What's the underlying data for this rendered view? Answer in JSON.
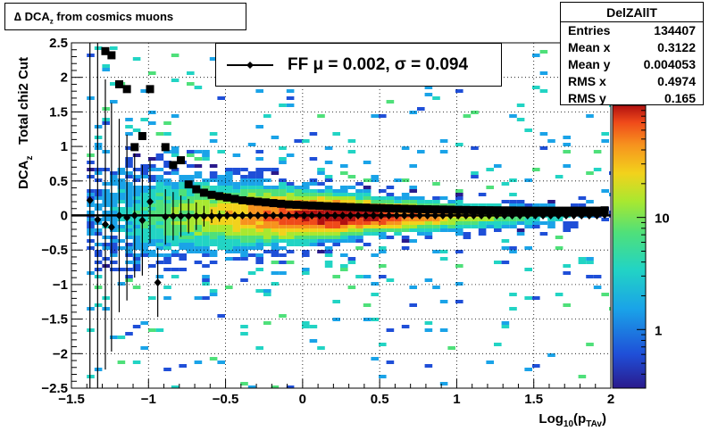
{
  "title": {
    "main": "∆ DCA",
    "sub": "z",
    "rest": " from cosmics muons"
  },
  "stats": {
    "name": "DelZAllT",
    "rows": [
      {
        "key": "Entries",
        "value": "134407"
      },
      {
        "key": "Mean x",
        "value": "0.3122"
      },
      {
        "key": "Mean y",
        "value": "0.004053"
      },
      {
        "key": "RMS x",
        "value": "0.4974"
      },
      {
        "key": "RMS y",
        "value": "0.165"
      }
    ]
  },
  "legend": {
    "label": "FF μ =  0.002, σ =   0.094"
  },
  "chart_data": {
    "type": "heatmap",
    "xlabel": {
      "main": "Log",
      "sub1": "10",
      "mid": "(p",
      "sub2": "TAv",
      "end": ")"
    },
    "ylabel": {
      "main": "DCA",
      "sub": "z",
      "rest": "   Total chi2 Cut"
    },
    "xlim": [
      -1.5,
      2
    ],
    "ylim": [
      -2.5,
      2.5
    ],
    "x_ticks": [
      -1.5,
      -1,
      -0.5,
      0,
      0.5,
      1,
      1.5,
      2
    ],
    "x_tick_labels": [
      "−1.5",
      "−1",
      "−0.5",
      "0",
      "0.5",
      "1",
      "1.5",
      "2"
    ],
    "y_ticks": [
      -2.5,
      -2,
      -1.5,
      -1,
      -0.5,
      0,
      0.5,
      1,
      1.5,
      2,
      2.5
    ],
    "y_tick_labels": [
      "−2.5",
      "−2",
      "−1.5",
      "−1",
      "−0.5",
      "0",
      "0.5",
      "1",
      "1.5",
      "2",
      "2.5"
    ],
    "grid": true,
    "z_scale": "log",
    "z_ticks": [
      1,
      10
    ],
    "z_tick_labels": [
      "1",
      "10"
    ],
    "z_range": [
      0.3,
      100
    ],
    "colormap": [
      "#2a1a8c",
      "#1f4fd8",
      "#1aa3e8",
      "#22d4c4",
      "#4fe07a",
      "#a8e830",
      "#f2d21c",
      "#f7931e",
      "#ef4a1a",
      "#b11010"
    ],
    "heatmap": {
      "center_y": 0,
      "width_at_x": [
        [
          -1.3,
          1.1
        ],
        [
          -0.5,
          0.7
        ],
        [
          0.5,
          0.35
        ],
        [
          1.5,
          0.25
        ],
        [
          2,
          0.2
        ]
      ],
      "peak_x": 0.25
    },
    "series": [
      {
        "marker": "square",
        "points": [
          {
            "x": -1.28,
            "y": 2.38
          },
          {
            "x": -1.24,
            "y": 2.32
          },
          {
            "x": -1.19,
            "y": 1.9
          },
          {
            "x": -1.14,
            "y": 1.83
          },
          {
            "x": -1.09,
            "y": 0.99
          },
          {
            "x": -1.04,
            "y": 1.15
          },
          {
            "x": -0.99,
            "y": 1.83
          },
          {
            "x": -0.89,
            "y": 0.99
          },
          {
            "x": -0.84,
            "y": 0.73
          },
          {
            "x": -0.79,
            "y": 0.8
          },
          {
            "x": -0.74,
            "y": 0.45
          },
          {
            "x": -0.69,
            "y": 0.38
          },
          {
            "x": -0.64,
            "y": 0.33
          },
          {
            "x": -0.59,
            "y": 0.3
          },
          {
            "x": -0.54,
            "y": 0.28
          },
          {
            "x": -0.49,
            "y": 0.26
          },
          {
            "x": -0.44,
            "y": 0.24
          },
          {
            "x": -0.39,
            "y": 0.22
          },
          {
            "x": -0.34,
            "y": 0.21
          },
          {
            "x": -0.29,
            "y": 0.2
          },
          {
            "x": -0.24,
            "y": 0.19
          },
          {
            "x": -0.19,
            "y": 0.18
          },
          {
            "x": -0.14,
            "y": 0.17
          },
          {
            "x": -0.09,
            "y": 0.16
          },
          {
            "x": -0.04,
            "y": 0.155
          },
          {
            "x": 0.01,
            "y": 0.15
          },
          {
            "x": 0.06,
            "y": 0.145
          },
          {
            "x": 0.11,
            "y": 0.14
          },
          {
            "x": 0.16,
            "y": 0.135
          },
          {
            "x": 0.21,
            "y": 0.13
          },
          {
            "x": 0.26,
            "y": 0.126
          },
          {
            "x": 0.31,
            "y": 0.122
          },
          {
            "x": 0.36,
            "y": 0.118
          },
          {
            "x": 0.41,
            "y": 0.114
          },
          {
            "x": 0.46,
            "y": 0.11
          },
          {
            "x": 0.51,
            "y": 0.107
          },
          {
            "x": 0.56,
            "y": 0.104
          },
          {
            "x": 0.61,
            "y": 0.101
          },
          {
            "x": 0.66,
            "y": 0.098
          },
          {
            "x": 0.71,
            "y": 0.095
          },
          {
            "x": 0.76,
            "y": 0.092
          },
          {
            "x": 0.81,
            "y": 0.09
          },
          {
            "x": 0.86,
            "y": 0.088
          },
          {
            "x": 0.91,
            "y": 0.086
          },
          {
            "x": 0.96,
            "y": 0.084
          },
          {
            "x": 1.01,
            "y": 0.082
          },
          {
            "x": 1.06,
            "y": 0.08
          },
          {
            "x": 1.11,
            "y": 0.078
          },
          {
            "x": 1.16,
            "y": 0.077
          },
          {
            "x": 1.21,
            "y": 0.076
          },
          {
            "x": 1.26,
            "y": 0.075
          },
          {
            "x": 1.31,
            "y": 0.074
          },
          {
            "x": 1.36,
            "y": 0.073
          },
          {
            "x": 1.41,
            "y": 0.072
          },
          {
            "x": 1.46,
            "y": 0.071
          },
          {
            "x": 1.51,
            "y": 0.07
          },
          {
            "x": 1.56,
            "y": 0.07
          },
          {
            "x": 1.61,
            "y": 0.07
          },
          {
            "x": 1.66,
            "y": 0.07
          },
          {
            "x": 1.71,
            "y": 0.07
          },
          {
            "x": 1.76,
            "y": 0.07
          },
          {
            "x": 1.81,
            "y": 0.07
          },
          {
            "x": 1.86,
            "y": 0.07
          },
          {
            "x": 1.91,
            "y": 0.07
          },
          {
            "x": 1.96,
            "y": 0.075
          }
        ]
      },
      {
        "marker": "diamond",
        "label_ref": "legend",
        "fit_line": {
          "y": 0.002
        },
        "points": [
          {
            "x": -1.38,
            "y": 0.22,
            "err": 2.8
          },
          {
            "x": -1.33,
            "y": -0.06,
            "err": 2.6
          },
          {
            "x": -1.28,
            "y": -0.13,
            "err": 2.1
          },
          {
            "x": -1.24,
            "y": -0.17,
            "err": 1.8
          },
          {
            "x": -1.19,
            "y": 0.0,
            "err": 1.4
          },
          {
            "x": -1.14,
            "y": -0.03,
            "err": 1.2
          },
          {
            "x": -1.09,
            "y": -0.0,
            "err": 0.9
          },
          {
            "x": -1.04,
            "y": -0.07,
            "err": 0.8
          },
          {
            "x": -0.99,
            "y": 0.2,
            "err": 0.6
          },
          {
            "x": -0.94,
            "y": -0.97,
            "err": 0.5
          },
          {
            "x": -0.89,
            "y": -0.02,
            "err": 0.4
          },
          {
            "x": -0.84,
            "y": -0.01,
            "err": 0.35
          },
          {
            "x": -0.79,
            "y": -0.01,
            "err": 0.3
          },
          {
            "x": -0.74,
            "y": -0.01,
            "err": 0.25
          },
          {
            "x": -0.69,
            "y": -0.01,
            "err": 0.2
          },
          {
            "x": -0.64,
            "y": -0.01,
            "err": 0.15
          },
          {
            "x": -0.59,
            "y": -0.01,
            "err": 0.1
          },
          {
            "x": -0.54,
            "y": -0.01,
            "err": 0.08
          },
          {
            "x": -0.49,
            "y": 0.0,
            "err": 0.06
          },
          {
            "x": -0.44,
            "y": 0.0,
            "err": 0.05
          },
          {
            "x": -0.39,
            "y": 0.0,
            "err": 0.04
          },
          {
            "x": -0.34,
            "y": 0.0,
            "err": 0.03
          },
          {
            "x": -0.29,
            "y": 0.0,
            "err": 0.03
          },
          {
            "x": -0.24,
            "y": 0.0,
            "err": 0.02
          },
          {
            "x": -0.19,
            "y": 0.0,
            "err": 0.02
          },
          {
            "x": -0.14,
            "y": 0.0,
            "err": 0.02
          },
          {
            "x": -0.09,
            "y": 0.0,
            "err": 0.02
          },
          {
            "x": -0.04,
            "y": 0.0,
            "err": 0.02
          },
          {
            "x": 0.01,
            "y": 0.0,
            "err": 0.02
          },
          {
            "x": 0.06,
            "y": 0.0,
            "err": 0.02
          },
          {
            "x": 0.11,
            "y": 0.0,
            "err": 0.02
          },
          {
            "x": 0.16,
            "y": 0.0,
            "err": 0.02
          },
          {
            "x": 0.21,
            "y": 0.0,
            "err": 0.02
          },
          {
            "x": 0.26,
            "y": 0.0,
            "err": 0.02
          },
          {
            "x": 0.31,
            "y": 0.0,
            "err": 0.02
          },
          {
            "x": 0.36,
            "y": 0.0,
            "err": 0.02
          },
          {
            "x": 0.41,
            "y": 0.0,
            "err": 0.02
          },
          {
            "x": 0.46,
            "y": 0.0,
            "err": 0.02
          },
          {
            "x": 0.51,
            "y": 0.0,
            "err": 0.02
          },
          {
            "x": 0.56,
            "y": 0.0,
            "err": 0.02
          },
          {
            "x": 0.61,
            "y": 0.0,
            "err": 0.02
          },
          {
            "x": 0.66,
            "y": 0.0,
            "err": 0.02
          },
          {
            "x": 0.71,
            "y": 0.0,
            "err": 0.02
          },
          {
            "x": 0.76,
            "y": 0.0,
            "err": 0.02
          },
          {
            "x": 0.81,
            "y": 0.0,
            "err": 0.02
          },
          {
            "x": 0.86,
            "y": 0.0,
            "err": 0.02
          },
          {
            "x": 0.91,
            "y": 0.0,
            "err": 0.02
          },
          {
            "x": 0.96,
            "y": 0.0,
            "err": 0.02
          },
          {
            "x": 1.01,
            "y": 0.0,
            "err": 0.02
          },
          {
            "x": 1.06,
            "y": 0.0,
            "err": 0.02
          },
          {
            "x": 1.11,
            "y": 0.0,
            "err": 0.02
          },
          {
            "x": 1.16,
            "y": 0.0,
            "err": 0.02
          },
          {
            "x": 1.21,
            "y": 0.0,
            "err": 0.02
          },
          {
            "x": 1.26,
            "y": 0.0,
            "err": 0.02
          },
          {
            "x": 1.31,
            "y": 0.0,
            "err": 0.02
          },
          {
            "x": 1.36,
            "y": 0.0,
            "err": 0.02
          },
          {
            "x": 1.41,
            "y": 0.0,
            "err": 0.02
          },
          {
            "x": 1.46,
            "y": 0.0,
            "err": 0.02
          },
          {
            "x": 1.51,
            "y": 0.0,
            "err": 0.02
          },
          {
            "x": 1.56,
            "y": 0.0,
            "err": 0.02
          },
          {
            "x": 1.61,
            "y": 0.0,
            "err": 0.02
          },
          {
            "x": 1.66,
            "y": 0.0,
            "err": 0.02
          },
          {
            "x": 1.71,
            "y": 0.0,
            "err": 0.02
          },
          {
            "x": 1.76,
            "y": 0.0,
            "err": 0.02
          },
          {
            "x": 1.81,
            "y": 0.0,
            "err": 0.02
          },
          {
            "x": 1.86,
            "y": 0.0,
            "err": 0.02
          },
          {
            "x": 1.91,
            "y": 0.0,
            "err": 0.02
          },
          {
            "x": 1.96,
            "y": 0.01,
            "err": 0.02
          }
        ]
      }
    ]
  }
}
